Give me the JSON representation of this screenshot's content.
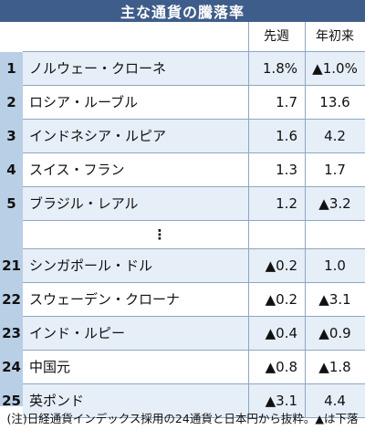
{
  "title": "主な通貨の騰落率",
  "columns": {
    "week": "先週",
    "ytd": "年初来"
  },
  "rows_top": [
    {
      "rank": "1",
      "name": "ノルウェー・クローネ",
      "week": "1.8%",
      "ytd": "▲1.0%"
    },
    {
      "rank": "2",
      "name": "ロシア・ルーブル",
      "week": "1.7",
      "ytd": "13.6"
    },
    {
      "rank": "3",
      "name": "インドネシア・ルピア",
      "week": "1.6",
      "ytd": "4.2"
    },
    {
      "rank": "4",
      "name": "スイス・フラン",
      "week": "1.3",
      "ytd": "1.7"
    },
    {
      "rank": "5",
      "name": "ブラジル・レアル",
      "week": "1.2",
      "ytd": "▲3.2"
    }
  ],
  "ellipsis": "⋮",
  "rows_bottom": [
    {
      "rank": "21",
      "name": "シンガポール・ドル",
      "week": "▲0.2",
      "ytd": "1.0"
    },
    {
      "rank": "22",
      "name": "スウェーデン・クローナ",
      "week": "▲0.2",
      "ytd": "▲3.1"
    },
    {
      "rank": "23",
      "name": "インド・ルピー",
      "week": "▲0.4",
      "ytd": "▲0.9"
    },
    {
      "rank": "24",
      "name": "中国元",
      "week": "▲0.8",
      "ytd": "▲1.8"
    },
    {
      "rank": "25",
      "name": "英ポンド",
      "week": "▲3.1",
      "ytd": "4.4"
    }
  ],
  "footnote": "(注)日経通貨インデックス採用の24通貨と日本円から抜粋。▲は下落",
  "colors": {
    "title_bg": "#3f5d8a",
    "rank_bg": "#b9cfe6",
    "row_alt": "#e6eef7",
    "grid": "#8fa6c2"
  }
}
